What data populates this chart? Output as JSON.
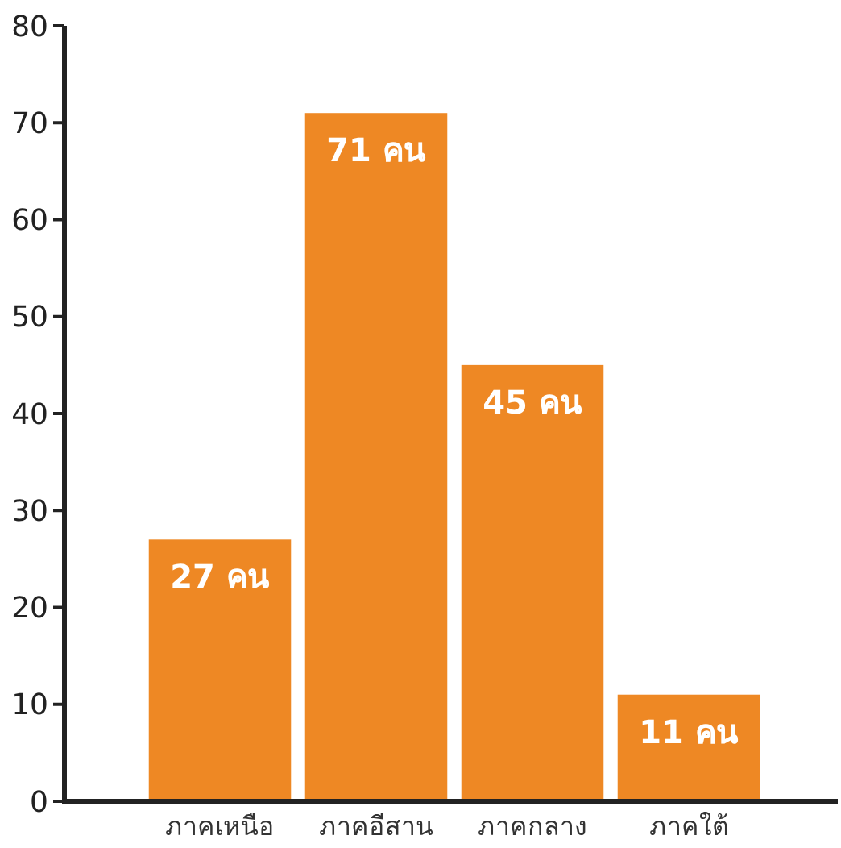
{
  "chart_data": {
    "type": "bar",
    "categories": [
      "ภาคเหนือ",
      "ภาคอีสาน",
      "ภาคกลาง",
      "ภาคใต้"
    ],
    "values": [
      27,
      71,
      45,
      11
    ],
    "value_labels": [
      "27 คน",
      "71 คน",
      "45 คน",
      "11 คน"
    ],
    "color": "#ee8824",
    "ylim": [
      0,
      80
    ],
    "yticks": [
      0,
      10,
      20,
      30,
      40,
      50,
      60,
      70,
      80
    ],
    "grid": false
  }
}
